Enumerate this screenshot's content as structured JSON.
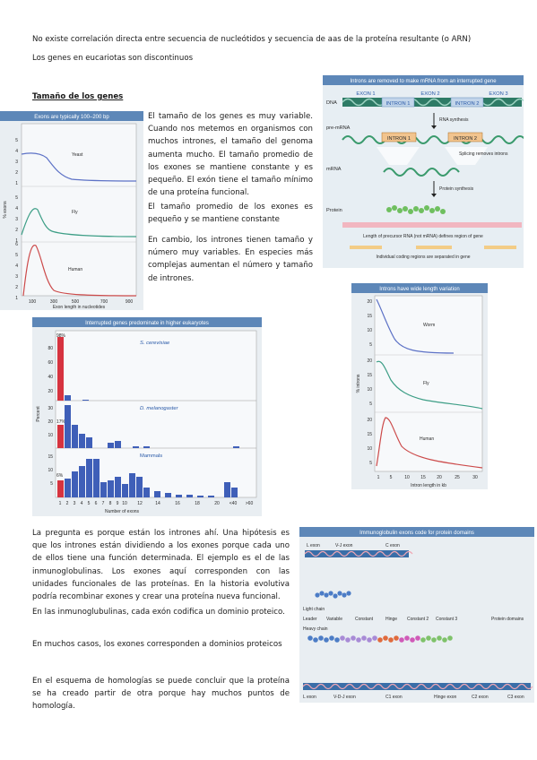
{
  "intro": {
    "line1": "No existe correlación directa entre secuencia de nucleótidos y secuencia de aas de la proteína resultante (o ARN)",
    "line2": "Los genes en eucariotas son discontinuos"
  },
  "section": {
    "heading": "Tamaño de los genes",
    "para1": "El tamaño de los genes es muy variable. Cuando nos metemos en organismos con muchos intrones, el tamaño del genoma aumenta mucho. El tamaño promedio de los exones se mantiene constante y es pequeño. El exón tiene el tamaño mínimo de una proteína funcional.",
    "para2": "El tamaño promedio de los exones es pequeño y se mantiene constante",
    "para3": "En cambio, los intrones tienen tamaño y número muy variables. En especies más complejas aumentan el número y tamaño de intrones."
  },
  "lower": {
    "para1": "La pregunta es porque están los intrones ahí. Una hipótesis es que los intrones están dividiendo a los exones porque cada uno de ellos tiene una función determinada. El ejemplo es el de las inmunoglobulinas. Los exones aquí corresponden con las unidades funcionales de las proteínas. En la historia evolutiva podría recombinar exones y crear una proteína nueva funcional.",
    "para2": "En las inmunoglubulinas, cada exón codifica un dominio proteico.",
    "para3": "En muchos casos, los exones corresponden a dominios proteicos",
    "para4": "En el esquema de homologías se puede concluir que la proteína se ha creado  partir de otra porque hay muchos puntos de homología."
  },
  "fig_exons": {
    "title": "Exons are typically 100–200 bp",
    "ylabel": "% exons",
    "xlabel": "Exon length in nucleotides",
    "xticks": [
      "100",
      "300",
      "500",
      "700",
      "900"
    ],
    "yticks_top": [
      "5",
      "4",
      "3",
      "2",
      "1"
    ],
    "yticks_mid": [
      "5",
      "4",
      "3",
      "2",
      "1"
    ],
    "yticks_bot": [
      "6",
      "5",
      "4",
      "3",
      "2",
      "1"
    ],
    "series": [
      "Yeast",
      "Fly",
      "Human"
    ]
  },
  "fig_interrupted": {
    "title": "Introns are removed to make mRNA from an interrupted gene",
    "exon1": "EXON 1",
    "exon2": "EXON 2",
    "exon3": "EXON 3",
    "intron1": "INTRON 1",
    "intron2": "INTRON 2",
    "dna": "DNA",
    "premrna": "pre-mRNA",
    "mrna": "mRNA",
    "protein": "Protein",
    "rna_synthesis": "RNA synthesis",
    "splicing": "Splicing removes introns",
    "protein_synthesis": "Protein synthesis",
    "caption1": "Length of precursor RNA (not mRNA) defines region of gene",
    "caption2": "Individual coding regions are separated in gene"
  },
  "fig_predominate": {
    "title": "Interrupted genes predominate in higher eukaryotes",
    "ylabel": "Percent",
    "xlabel": "Number of exons",
    "xticks": [
      "1",
      "2",
      "3",
      "4",
      "5",
      "6",
      "7",
      "8",
      "9",
      "10",
      "12",
      "14",
      "16",
      "18",
      "20",
      "<40",
      ">60"
    ],
    "species": [
      "S. cerevisiae",
      "D. melanogaster",
      "Mammals"
    ],
    "pct1": "98%",
    "pct2": "17%",
    "pct3": "6%",
    "yticks_top": [
      "80",
      "60",
      "40",
      "20"
    ],
    "yticks_mid": [
      "30",
      "20",
      "10"
    ],
    "yticks_bot": [
      "15",
      "10",
      "5"
    ]
  },
  "fig_introns": {
    "title": "Introns have wide length variation",
    "ylabel": "% introns",
    "xlabel": "Intron length in kb",
    "xticks": [
      "1",
      "5",
      "10",
      "15",
      "20",
      "25",
      "30"
    ],
    "yticks_top": [
      "20",
      "15",
      "10",
      "5"
    ],
    "yticks_mid": [
      "20",
      "15",
      "10",
      "5"
    ],
    "yticks_bot": [
      "20",
      "15",
      "10",
      "5"
    ],
    "series": [
      "Worm",
      "Fly",
      "Human"
    ]
  },
  "fig_immuno": {
    "title": "Immunoglobulin exons code for protein domains",
    "l_exon": "L exon",
    "vj_exon": "V-J exon",
    "c_exon": "C exon",
    "light_chain": "Light chain",
    "heavy_chain": "Heavy chain",
    "leader": "Leader",
    "variable": "Variable",
    "constant": "Constant",
    "hinge": "Hinge",
    "constant2": "Constant 2",
    "constant3": "Constant 3",
    "protein_domains": "Protein domains",
    "b_l_exon": "L exon",
    "b_vdj_exon": "V-D-J exon",
    "b_c1_exon": "C1 exon",
    "b_hinge_exon": "Hinge exon",
    "b_c2_exon": "C2 exon",
    "b_c3_exon": "C3 exon"
  }
}
